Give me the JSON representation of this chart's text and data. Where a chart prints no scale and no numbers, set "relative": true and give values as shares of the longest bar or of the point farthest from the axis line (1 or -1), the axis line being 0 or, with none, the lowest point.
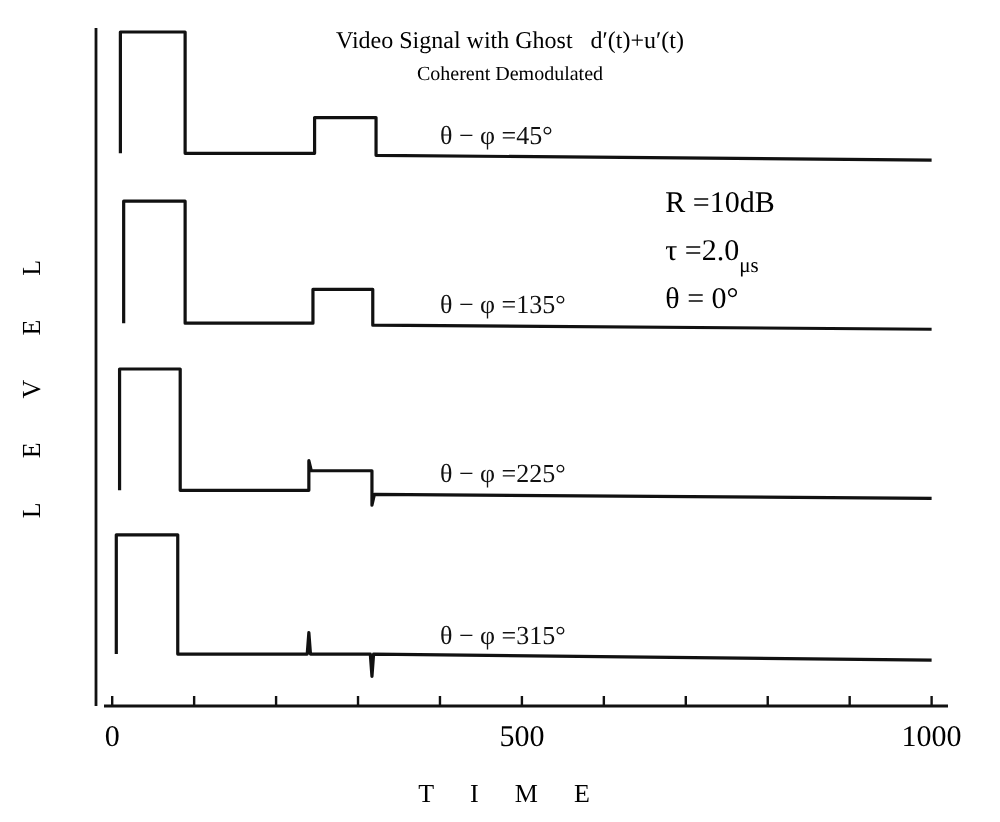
{
  "chart_data": {
    "type": "line",
    "title": "Video Signal with Ghost   d′(t)+u′(t)",
    "subtitle": "Coherent Demodulated",
    "xlabel": "TIME",
    "ylabel": "LEVEL",
    "relative": true,
    "xlim": [
      -10,
      1020
    ],
    "xticks": [
      0,
      {
        "value": 100,
        "label": null
      },
      {
        "value": 200,
        "label": null
      },
      {
        "value": 300,
        "label": null
      },
      {
        "value": 400,
        "label": null
      },
      500,
      {
        "value": 600,
        "label": null
      },
      {
        "value": 700,
        "label": null
      },
      {
        "value": 800,
        "label": null
      },
      {
        "value": 900,
        "label": null
      },
      1000
    ],
    "marker": "none",
    "line_style": "solid",
    "grid": false,
    "series": [
      {
        "name": "θ − φ =45°",
        "color": "#111111",
        "x": [
          10,
          10,
          89,
          89,
          247,
          247,
          322,
          322,
          1000
        ],
        "values": [
          0.82,
          1.0,
          1.0,
          0.82,
          0.82,
          0.873,
          0.873,
          0.817,
          0.81
        ]
      },
      {
        "name": "θ − φ =135°",
        "color": "#111111",
        "x": [
          14,
          14,
          89,
          89,
          245,
          245,
          318,
          318,
          1000
        ],
        "values": [
          0.568,
          0.749,
          0.749,
          0.568,
          0.568,
          0.618,
          0.618,
          0.565,
          0.559
        ]
      },
      {
        "name": "θ − φ =225°",
        "color": "#111111",
        "x": [
          9,
          9,
          83,
          83,
          240,
          240,
          243,
          317,
          317,
          320,
          1000
        ],
        "values": [
          0.32,
          0.5,
          0.5,
          0.32,
          0.32,
          0.364,
          0.349,
          0.349,
          0.298,
          0.314,
          0.308
        ]
      },
      {
        "name": "θ − φ =315°",
        "color": "#111111",
        "x": [
          5,
          5,
          80,
          80,
          238,
          240,
          242,
          315,
          317,
          319,
          1000
        ],
        "values": [
          0.077,
          0.254,
          0.254,
          0.077,
          0.077,
          0.109,
          0.077,
          0.077,
          0.044,
          0.077,
          0.068
        ]
      }
    ],
    "annotations": [
      "R =10dB",
      "τ =2.0$_{μs}$",
      "θ = 0°"
    ]
  }
}
